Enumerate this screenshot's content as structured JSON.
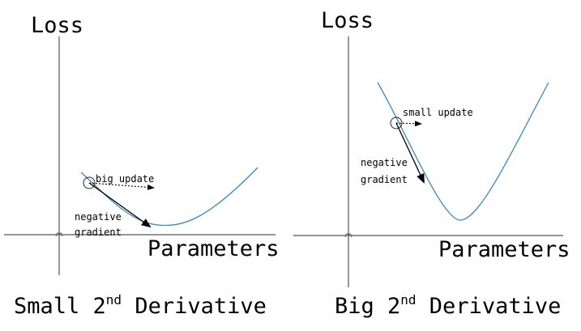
{
  "panels": [
    {
      "id": "small",
      "y_axis_label": "Loss",
      "x_axis_label": "Parameters",
      "update_label": "big update",
      "gradient_label_line1": "negative",
      "gradient_label_line2": "gradient",
      "caption_prefix": "Small 2",
      "caption_sup": "nd",
      "caption_suffix": " Derivative"
    },
    {
      "id": "big",
      "y_axis_label": "Loss",
      "x_axis_label": "Parameters",
      "update_label": "small update",
      "gradient_label_line1": "negative",
      "gradient_label_line2": "gradient",
      "caption_prefix": "Big 2",
      "caption_sup": "nd",
      "caption_suffix": " Derivative"
    }
  ],
  "colors": {
    "curve": "#3b86c4",
    "axis": "#555555",
    "arrow": "#000000"
  }
}
